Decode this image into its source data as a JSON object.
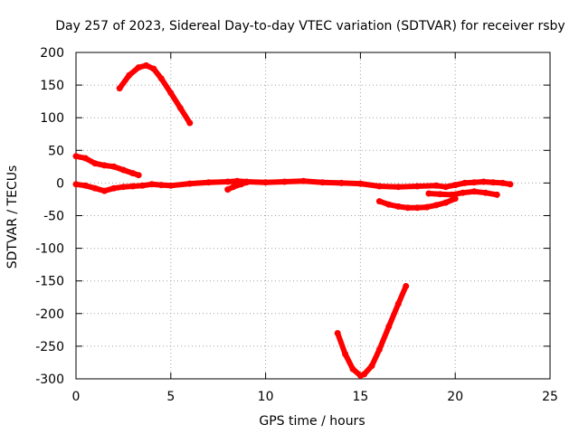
{
  "chart_data": {
    "type": "scatter",
    "title": "Day 257 of 2023, Sidereal Day-to-day VTEC variation (SDTVAR) for receiver rsby",
    "xlabel": "GPS time / hours",
    "ylabel": "SDTVAR / TECUs",
    "xlim": [
      0,
      25
    ],
    "ylim": [
      -300,
      200
    ],
    "xticks": [
      0,
      5,
      10,
      15,
      20,
      25
    ],
    "yticks": [
      -300,
      -250,
      -200,
      -150,
      -100,
      -50,
      0,
      50,
      100,
      150,
      200
    ],
    "grid": true,
    "series_color": "#ff0000",
    "series": [
      {
        "x": [
          2.3,
          2.8,
          3.3,
          3.7,
          4.1,
          4.5,
          5.0,
          5.5,
          6.0
        ],
        "y": [
          145,
          165,
          177,
          180,
          175,
          160,
          138,
          115,
          92
        ]
      },
      {
        "x": [
          0.0,
          0.5,
          1.0,
          1.5,
          2.0,
          2.5,
          3.0,
          3.3
        ],
        "y": [
          41,
          38,
          30,
          27,
          25,
          20,
          15,
          12
        ]
      },
      {
        "x": [
          0.0,
          0.5,
          1.0,
          1.5,
          2.0,
          2.5,
          3.0,
          3.5,
          4.0,
          4.5,
          5.0,
          6.0,
          7.0,
          8.0,
          8.5,
          9.0,
          10.0,
          11.0,
          12.0,
          13.0,
          14.0,
          15.0,
          16.0,
          17.0,
          18.0,
          19.0,
          19.5,
          20.0,
          20.5,
          21.0,
          21.5,
          22.0,
          22.5,
          22.9
        ],
        "y": [
          -2,
          -4,
          -8,
          -12,
          -8,
          -6,
          -5,
          -4,
          -2,
          -3,
          -4,
          -1,
          1,
          2,
          3,
          2,
          1,
          2,
          3,
          1,
          0,
          -1,
          -5,
          -6,
          -5,
          -4,
          -6,
          -3,
          0,
          1,
          2,
          1,
          0,
          -2
        ]
      },
      {
        "x": [
          8.0,
          8.3,
          8.7,
          9.0
        ],
        "y": [
          -10,
          -6,
          -2,
          1
        ]
      },
      {
        "x": [
          16.0,
          16.5,
          17.0,
          17.5,
          18.0,
          18.5,
          19.0,
          19.5,
          20.0
        ],
        "y": [
          -28,
          -33,
          -36,
          -38,
          -38,
          -37,
          -34,
          -30,
          -24
        ]
      },
      {
        "x": [
          18.6,
          19.2,
          19.8,
          20.4,
          21.0,
          21.6,
          22.2
        ],
        "y": [
          -16,
          -17,
          -18,
          -15,
          -13,
          -15,
          -18
        ]
      },
      {
        "x": [
          13.8,
          14.2,
          14.6,
          15.0,
          15.2,
          15.6,
          16.0,
          16.5,
          17.0,
          17.4
        ],
        "y": [
          -230,
          -262,
          -285,
          -295,
          -293,
          -280,
          -255,
          -220,
          -185,
          -158
        ]
      }
    ]
  }
}
